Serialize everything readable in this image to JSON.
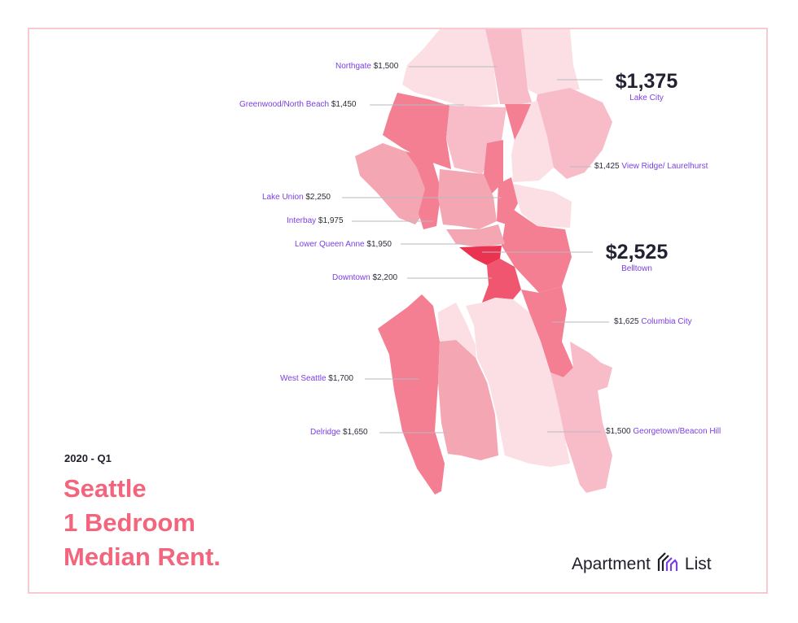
{
  "period": "2020 - Q1",
  "title_lines": [
    "Seattle",
    "1 Bedroom",
    "Median Rent."
  ],
  "brand": {
    "word1": "Apartment",
    "word2": "List",
    "icon": "apartment-list-logo-icon"
  },
  "colors": {
    "title": "#f2657d",
    "label_name": "#7b3fe4",
    "border": "#f7c9d1",
    "rent_1350_1500": "#fbdfe4",
    "rent_1500_1650": "#f7bcc7",
    "rent_1650_1975": "#f4a6b3",
    "rent_1700_2250": "#f47e92",
    "rent_2525": "#ea3350"
  },
  "neighborhoods": [
    {
      "name": "Northgate",
      "rent": "$1,500"
    },
    {
      "name": "Lake City",
      "rent": "$1,375",
      "highlight": true
    },
    {
      "name": "Greenwood/North Beach",
      "rent": "$1,450"
    },
    {
      "name": "View Ridge/ Laurelhurst",
      "rent": "$1,425"
    },
    {
      "name": "Lake Union",
      "rent": "$2,250"
    },
    {
      "name": "Interbay",
      "rent": "$1,975"
    },
    {
      "name": "Lower Queen Anne",
      "rent": "$1,950"
    },
    {
      "name": "Belltown",
      "rent": "$2,525",
      "highlight": true
    },
    {
      "name": "Downtown",
      "rent": "$2,200"
    },
    {
      "name": "Columbia City",
      "rent": "$1,625"
    },
    {
      "name": "West Seattle",
      "rent": "$1,700"
    },
    {
      "name": "Delridge",
      "rent": "$1,650"
    },
    {
      "name": "Georgetown/Beacon Hill",
      "rent": "$1,500"
    }
  ]
}
